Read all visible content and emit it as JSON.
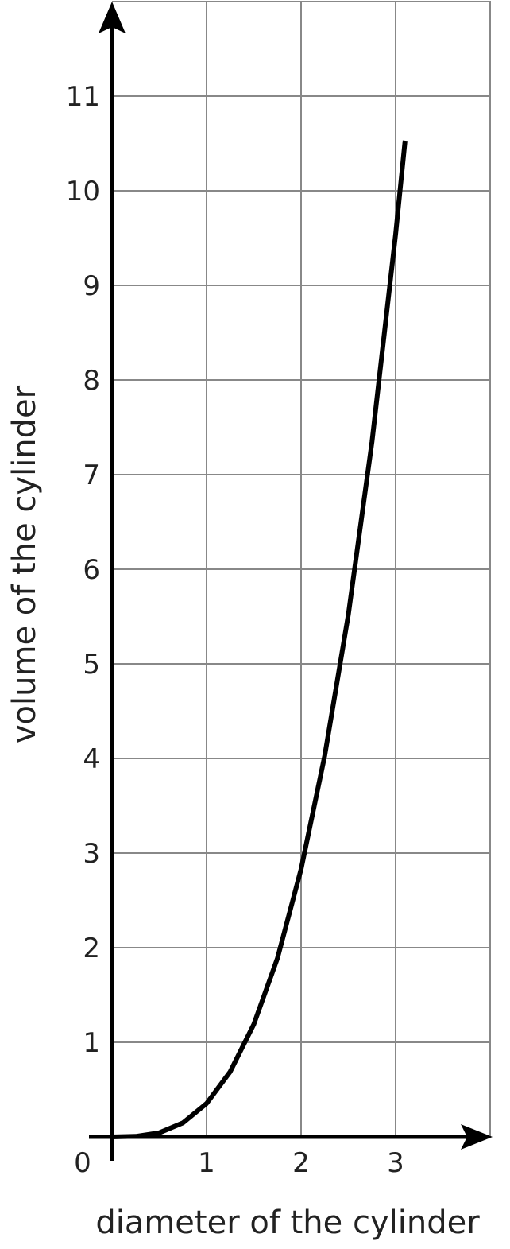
{
  "chart_data": {
    "type": "line",
    "title": "",
    "xlabel": "diameter of the cylinder",
    "ylabel": "volume of the cylinder",
    "origin_label": "0",
    "xlim": [
      0,
      4
    ],
    "ylim": [
      0,
      12
    ],
    "x_ticks": [
      1,
      2,
      3
    ],
    "y_ticks": [
      1,
      2,
      3,
      4,
      5,
      6,
      7,
      8,
      9,
      10,
      11
    ],
    "grid": true,
    "series": [
      {
        "x": [
          0,
          0.25,
          0.5,
          0.75,
          1,
          1.25,
          1.5,
          1.75,
          2,
          2.25,
          2.5,
          2.75,
          3,
          3.1
        ],
        "y": [
          0,
          0.0055,
          0.044,
          0.149,
          0.353,
          0.69,
          1.19,
          1.89,
          2.83,
          4.03,
          5.52,
          7.35,
          9.54,
          10.53
        ]
      }
    ],
    "colors": {
      "grid": "#888888",
      "axis": "#000000",
      "curve": "#000000"
    }
  }
}
